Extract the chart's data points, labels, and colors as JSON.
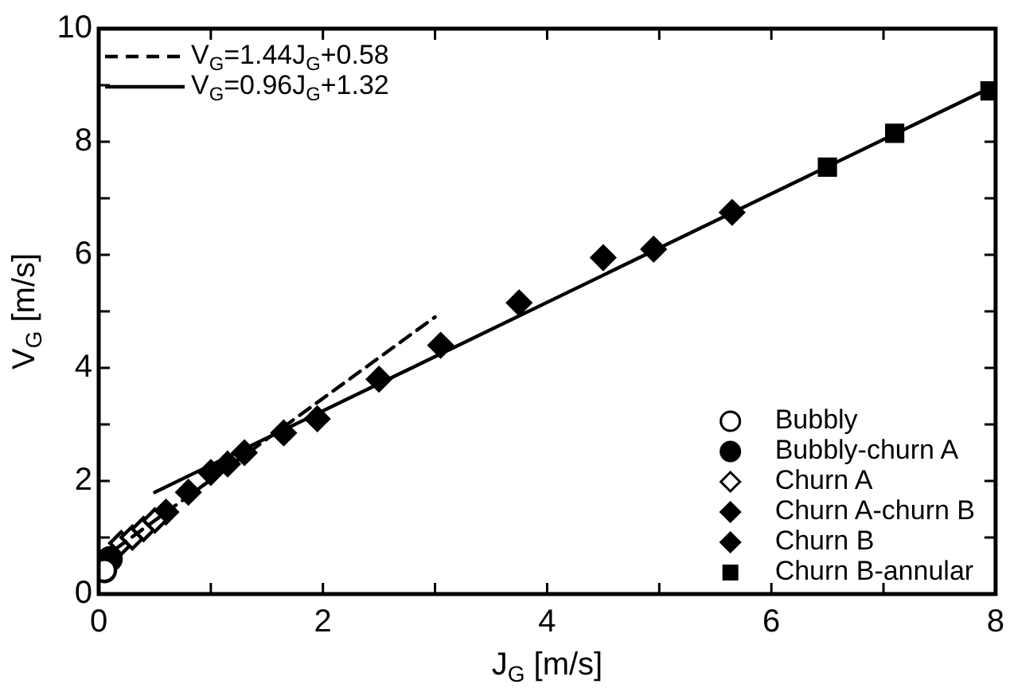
{
  "chart_data": {
    "type": "scatter",
    "xlabel": "J$_{G}$ [m/s]",
    "ylabel": "V$_{G}$ [m/s]",
    "xlim": [
      0,
      8
    ],
    "ylim": [
      0,
      10
    ],
    "xticks": [
      0,
      {
        "value": 1,
        "label": null
      },
      2,
      {
        "value": 3,
        "label": null
      },
      4,
      {
        "value": 5,
        "label": null
      },
      6,
      {
        "value": 7,
        "label": null
      },
      8
    ],
    "yticks": [
      0,
      {
        "value": 1,
        "label": null
      },
      2,
      {
        "value": 3,
        "label": null
      },
      4,
      {
        "value": 5,
        "label": null
      },
      6,
      {
        "value": 7,
        "label": null
      },
      8,
      {
        "value": 9,
        "label": null
      },
      10
    ],
    "grid": false,
    "legend": "bottom right",
    "series": [
      {
        "name": "V$_{G}$=1.44J$_{G}$+0.58",
        "type": "line",
        "color": "#000000",
        "line_style": "dashed",
        "marker": "none",
        "x": [
          0,
          3
        ],
        "values": [
          0.58,
          4.9
        ]
      },
      {
        "name": "V$_{G}$=0.96J$_{G}$+1.32",
        "type": "line",
        "color": "#000000",
        "line_style": "solid",
        "marker": "none",
        "x": [
          0.5,
          8
        ],
        "values": [
          1.8,
          9.0
        ]
      },
      {
        "name": "Bubbly",
        "color": "#ffffff",
        "marker": "circle",
        "x": [
          0.05
        ],
        "values": [
          0.42
        ]
      },
      {
        "name": "Bubbly-churn A",
        "color": "#000000",
        "marker": "circle",
        "x": [
          0.1
        ],
        "values": [
          0.62
        ]
      },
      {
        "name": "Churn A",
        "color": "#ffffff",
        "marker": "diamond",
        "x": [
          0.2,
          0.3,
          0.4,
          0.5
        ],
        "values": [
          0.9,
          1.0,
          1.15,
          1.3
        ]
      },
      {
        "name": "Churn A-churn B",
        "color": "#000000",
        "marker": "diamond",
        "x": [
          0.6,
          0.8,
          1.0,
          1.15
        ],
        "values": [
          1.45,
          1.8,
          2.15,
          2.3
        ]
      },
      {
        "name": "Churn B",
        "color": "#000000",
        "marker": "diamond",
        "x": [
          1.3,
          1.65,
          1.95,
          2.5,
          3.05,
          3.75,
          4.5,
          4.95,
          5.65
        ],
        "values": [
          2.5,
          2.85,
          3.1,
          3.8,
          4.4,
          5.15,
          5.95,
          6.1,
          6.75
        ]
      },
      {
        "name": "Churn B-annular",
        "color": "#000000",
        "marker": "square",
        "x": [
          6.5,
          7.1,
          7.95
        ],
        "values": [
          7.55,
          8.15,
          8.9
        ]
      }
    ]
  }
}
